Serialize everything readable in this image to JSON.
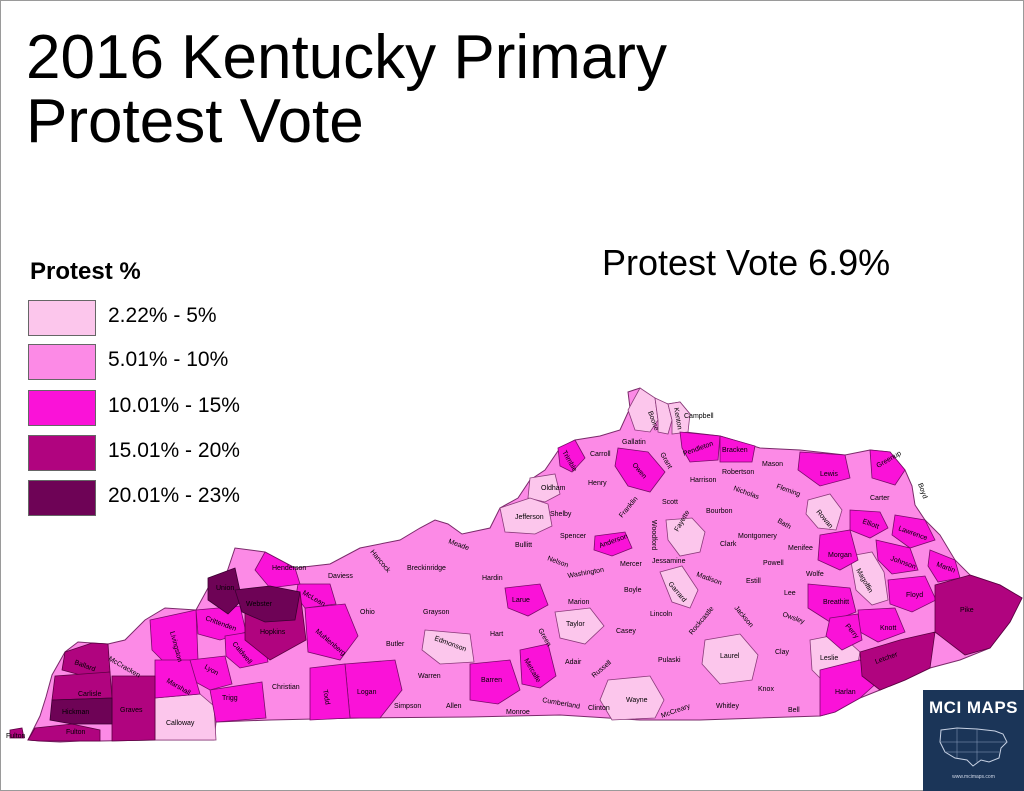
{
  "title_line1": "2016 Kentucky Primary",
  "title_line2": "Protest Vote",
  "subtitle": "Protest Vote 6.9%",
  "legend": {
    "title": "Protest %",
    "items": [
      {
        "label": "2.22% - 5%",
        "color": "#fcc6ec"
      },
      {
        "label": "5.01% - 10%",
        "color": "#fc8ae6"
      },
      {
        "label": "10.01% - 15%",
        "color": "#fa12d8"
      },
      {
        "label": "15.01% - 20%",
        "color": "#b0047f"
      },
      {
        "label": "20.01% - 23%",
        "color": "#6e0356"
      }
    ]
  },
  "counties": {
    "boone": "Boone",
    "kenton": "Kenton",
    "campbell": "Campbell",
    "gallatin": "Gallatin",
    "pendleton": "Pendleton",
    "bracken": "Bracken",
    "carroll": "Carroll",
    "grant": "Grant",
    "trimble": "Trimble",
    "owen": "Owen",
    "mason": "Mason",
    "robertson": "Robertson",
    "lewis": "Lewis",
    "greenup": "Greenup",
    "boyd": "Boyd",
    "oldham": "Oldham",
    "henry": "Henry",
    "harrison": "Harrison",
    "fleming": "Fleming",
    "nicholas": "Nicholas",
    "carter": "Carter",
    "scott": "Scott",
    "bourbon": "Bourbon",
    "shelby": "Shelby",
    "franklin": "Franklin",
    "jefferson": "Jefferson",
    "rowan": "Rowan",
    "bath": "Bath",
    "elliott": "Elliott",
    "lawrence": "Lawrence",
    "woodford": "Woodford",
    "fayette": "Fayette",
    "clark": "Clark",
    "montgomery": "Montgomery",
    "menifee": "Menifee",
    "morgan": "Morgan",
    "johnson": "Johnson",
    "martin": "Martin",
    "bullitt": "Bullitt",
    "spencer": "Spencer",
    "anderson": "Anderson",
    "jessamine": "Jessamine",
    "powell": "Powell",
    "wolfe": "Wolfe",
    "magoffin": "Magoffin",
    "floyd": "Floyd",
    "meade": "Meade",
    "hancock": "Hancock",
    "breckinridge": "Breckinridge",
    "hardin": "Hardin",
    "nelson": "Nelson",
    "washington": "Washington",
    "mercer": "Mercer",
    "madison": "Madison",
    "estill": "Estill",
    "lee": "Lee",
    "breathitt": "Breathitt",
    "knott": "Knott",
    "pike": "Pike",
    "henderson": "Henderson",
    "daviess": "Daviess",
    "union": "Union",
    "webster": "Webster",
    "mclean": "McLean",
    "ohio": "Ohio",
    "grayson": "Grayson",
    "larue": "Larue",
    "marion": "Marion",
    "boyle": "Boyle",
    "garrard": "Garrard",
    "lincoln": "Lincoln",
    "jackson": "Jackson",
    "owsley": "Owsley",
    "perry": "Perry",
    "letcher": "Letcher",
    "crittenden": "Crittenden",
    "hopkins": "Hopkins",
    "muhlenberg": "Muhlenberg",
    "butler": "Butler",
    "edmonson": "Edmonson",
    "hart": "Hart",
    "green": "Green",
    "taylor": "Taylor",
    "casey": "Casey",
    "rockcastle": "Rockcastle",
    "laurel": "Laurel",
    "clay": "Clay",
    "leslie": "Leslie",
    "livingston": "Livingston",
    "caldwell": "Caldwell",
    "lyon": "Lyon",
    "mccracken": "McCracken",
    "ballard": "Ballard",
    "carlisle": "Carlisle",
    "marshall": "Marshall",
    "trigg": "Trigg",
    "christian": "Christian",
    "todd": "Todd",
    "logan": "Logan",
    "warren": "Warren",
    "barren": "Barren",
    "metcalfe": "Metcalfe",
    "adair": "Adair",
    "russell": "Russell",
    "pulaski": "Pulaski",
    "knox": "Knox",
    "harlan": "Harlan",
    "bell": "Bell",
    "whitley": "Whitley",
    "mccreary": "McCreary",
    "wayne": "Wayne",
    "clinton": "Clinton",
    "cumberland": "Cumberland",
    "monroe": "Monroe",
    "allen": "Allen",
    "simpson": "Simpson",
    "graves": "Graves",
    "hickman": "Hickman",
    "fulton": "Fulton",
    "calloway": "Calloway",
    "fulton_exclave": "Fulton"
  },
  "logo": {
    "text": "MCI MAPS",
    "url": "www.mcimaps.com"
  }
}
